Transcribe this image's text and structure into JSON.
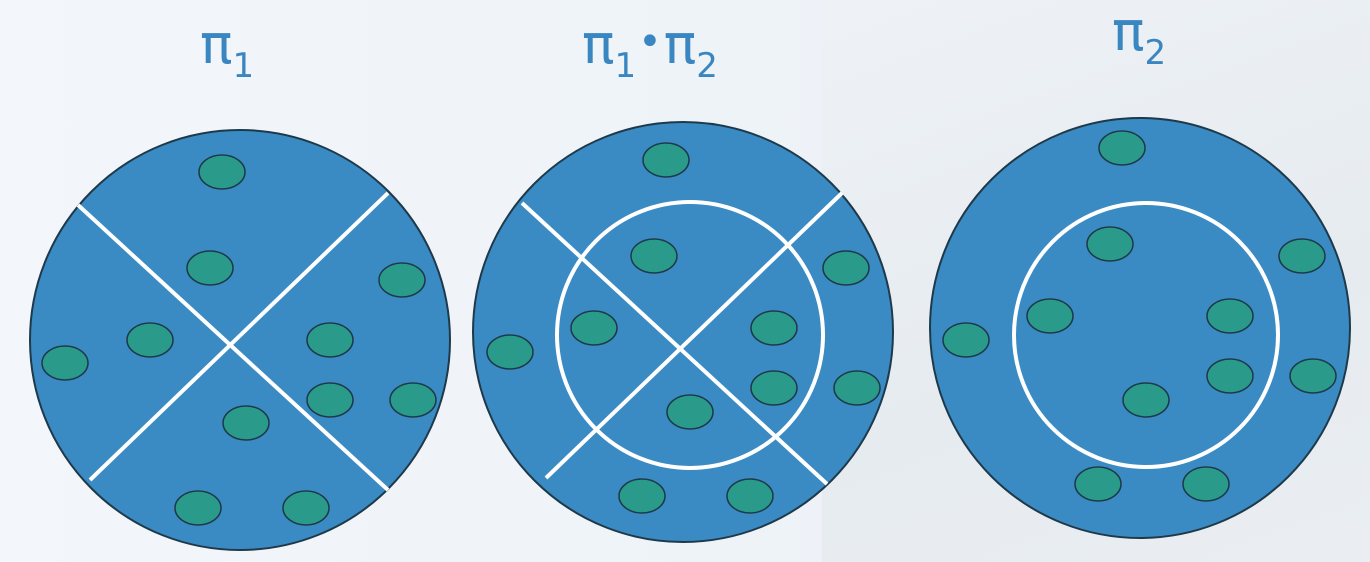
{
  "labels": {
    "pi1": {
      "symbol": "π",
      "sub": "1"
    },
    "product": {
      "symbol1": "π",
      "sub1": "1",
      "dot": "•",
      "symbol2": "π",
      "sub2": "2"
    },
    "pi2": {
      "symbol": "π",
      "sub": "2"
    }
  },
  "colors": {
    "disk": "#3a8ac4",
    "element": "#2a9b8a",
    "outline": "#1e3a4a",
    "divider": "#ffffff",
    "label": "#3a86c0"
  }
}
